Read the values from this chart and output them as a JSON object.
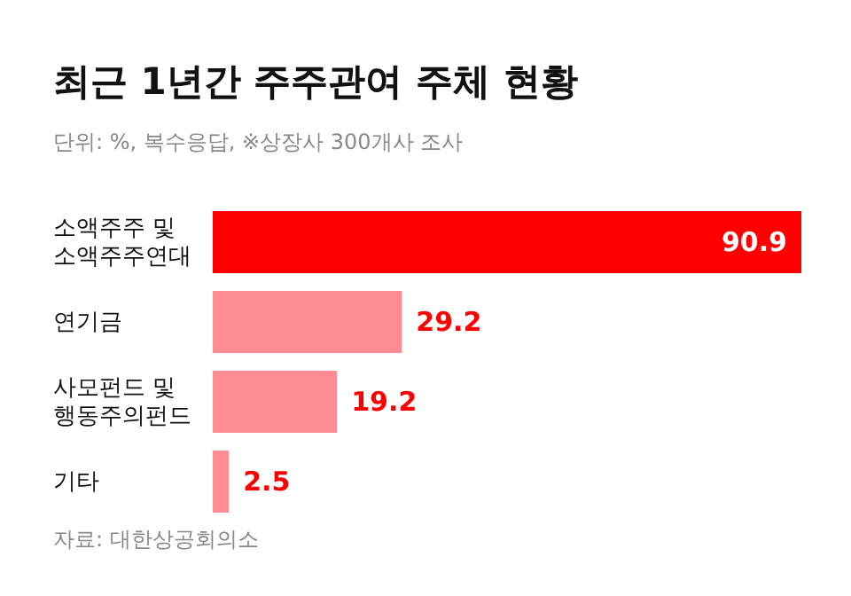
{
  "chart_data": {
    "type": "bar",
    "orientation": "horizontal",
    "title": "최근 1년간 주주관여 주체 현황",
    "subtitle": "단위: %, 복수응답, ※상장사 300개사 조사",
    "categories": [
      "소액주주 및\n소액주주연대",
      "연기금",
      "사모펀드 및\n행동주의펀드",
      "기타"
    ],
    "values": [
      90.9,
      29.2,
      19.2,
      2.5
    ],
    "colors": [
      "#ff0000",
      "#ff8c94",
      "#ff8c94",
      "#ff8c94"
    ],
    "data_labels": true,
    "annotations": [
      "자료: 대한상공회의소"
    ]
  }
}
